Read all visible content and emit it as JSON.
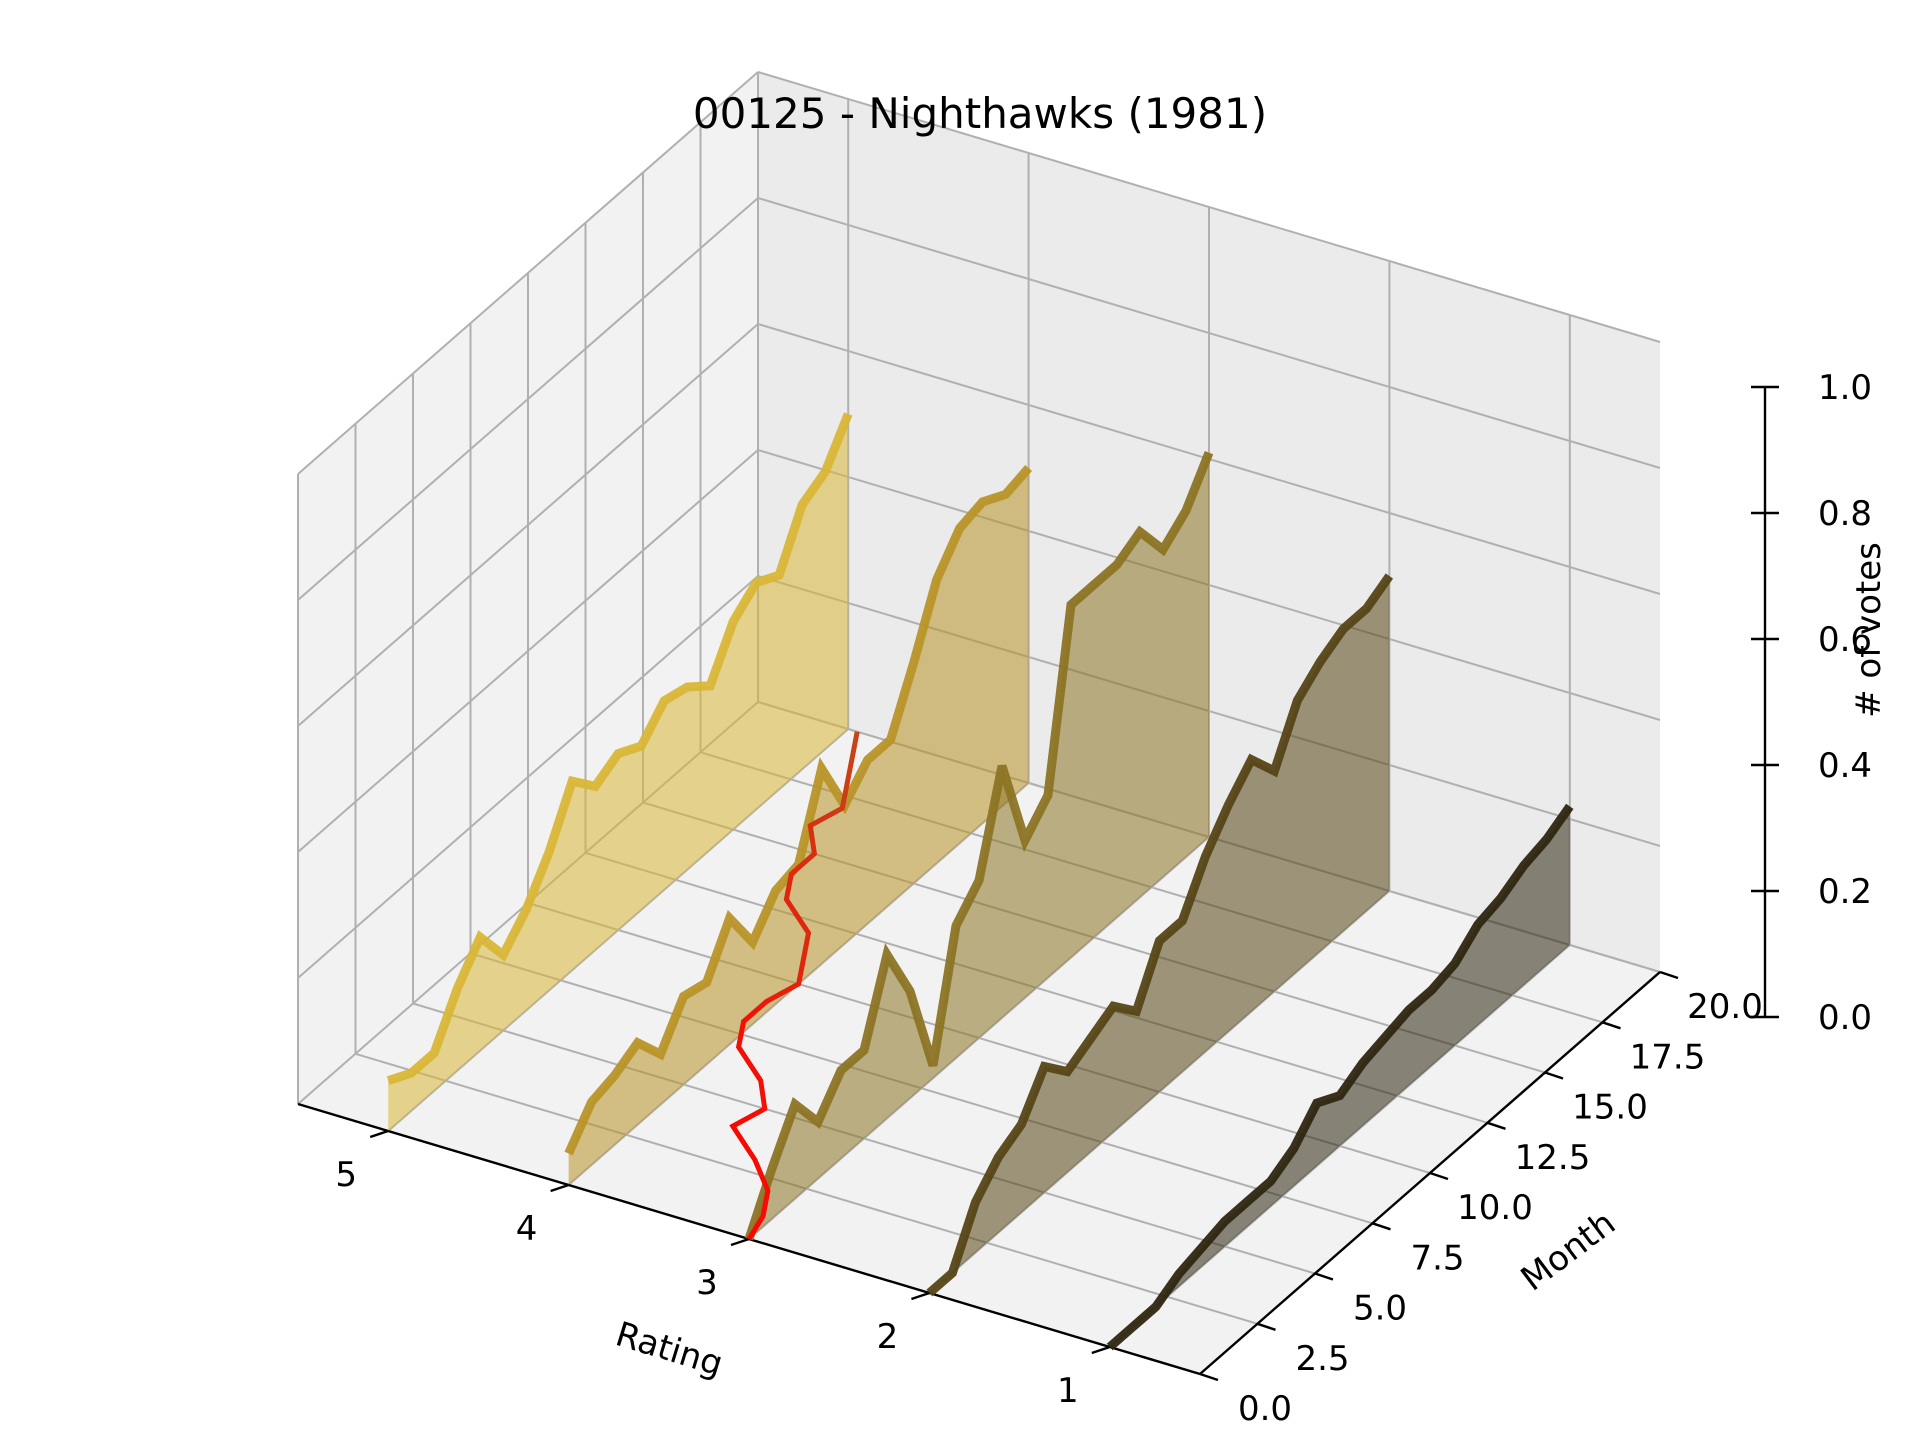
{
  "chart_data": {
    "type": "line",
    "title": "00125 - Nighthawks (1981)",
    "xlabel": "Rating",
    "ylabel": "Month",
    "zlabel": "# of votes",
    "rating_ticks": [
      "5",
      "4",
      "3",
      "2",
      "1"
    ],
    "month_ticks": [
      "0.0",
      "2.5",
      "5.0",
      "7.5",
      "10.0",
      "12.5",
      "15.0",
      "17.5",
      "20.0"
    ],
    "votes_ticks": [
      "0.0",
      "0.2",
      "0.4",
      "0.6",
      "0.8",
      "1.0"
    ],
    "ylim": [
      0,
      20
    ],
    "zlim": [
      0,
      1
    ],
    "grid": true,
    "x": [
      0,
      1,
      2,
      3,
      4,
      5,
      6,
      7,
      8,
      9,
      10,
      11,
      12,
      13,
      14,
      15,
      16,
      17,
      18,
      19,
      20
    ],
    "series": [
      {
        "rating": 5,
        "color": "#d9b637",
        "values": [
          0.08,
          0.06,
          0.06,
          0.13,
          0.18,
          0.12,
          0.16,
          0.22,
          0.3,
          0.26,
          0.28,
          0.26,
          0.3,
          0.29,
          0.26,
          0.33,
          0.36,
          0.34,
          0.42,
          0.44,
          0.5
        ]
      },
      {
        "rating": 4,
        "color": "#b89428",
        "values": [
          0.05,
          0.1,
          0.11,
          0.13,
          0.08,
          0.14,
          0.13,
          0.2,
          0.13,
          0.18,
          0.19,
          0.31,
          0.22,
          0.26,
          0.26,
          0.35,
          0.45,
          0.5,
          0.51,
          0.49,
          0.5
        ]
      },
      {
        "rating": 3,
        "color": "#8c7424",
        "values": [
          0.0,
          0.08,
          0.15,
          0.09,
          0.14,
          0.14,
          0.26,
          0.17,
          0.02,
          0.21,
          0.25,
          0.4,
          0.25,
          0.29,
          0.56,
          0.56,
          0.56,
          0.58,
          0.52,
          0.55,
          0.61
        ]
      },
      {
        "rating": 2,
        "color": "#554516",
        "values": [
          0.0,
          0.0,
          0.08,
          0.12,
          0.14,
          0.2,
          0.16,
          0.18,
          0.2,
          0.16,
          0.24,
          0.24,
          0.31,
          0.36,
          0.4,
          0.35,
          0.43,
          0.46,
          0.48,
          0.48,
          0.5
        ]
      },
      {
        "rating": 1,
        "color": "#2e2610",
        "values": [
          0.0,
          0.0,
          0.0,
          0.02,
          0.03,
          0.04,
          0.04,
          0.04,
          0.06,
          0.1,
          0.08,
          0.1,
          0.11,
          0.12,
          0.12,
          0.13,
          0.16,
          0.17,
          0.19,
          0.2,
          0.22
        ]
      }
    ],
    "median": {
      "color_start": "#ff0000",
      "color_end": "#c64418",
      "rating": [
        3.0,
        3.05,
        3.15,
        3.35,
        3.6,
        3.55,
        3.7,
        3.95,
        4.05,
        4.05,
        4.0,
        4.1,
        4.2,
        4.45,
        4.55,
        4.55,
        4.7,
        4.65,
        4.75,
        4.85,
        4.95
      ]
    }
  }
}
